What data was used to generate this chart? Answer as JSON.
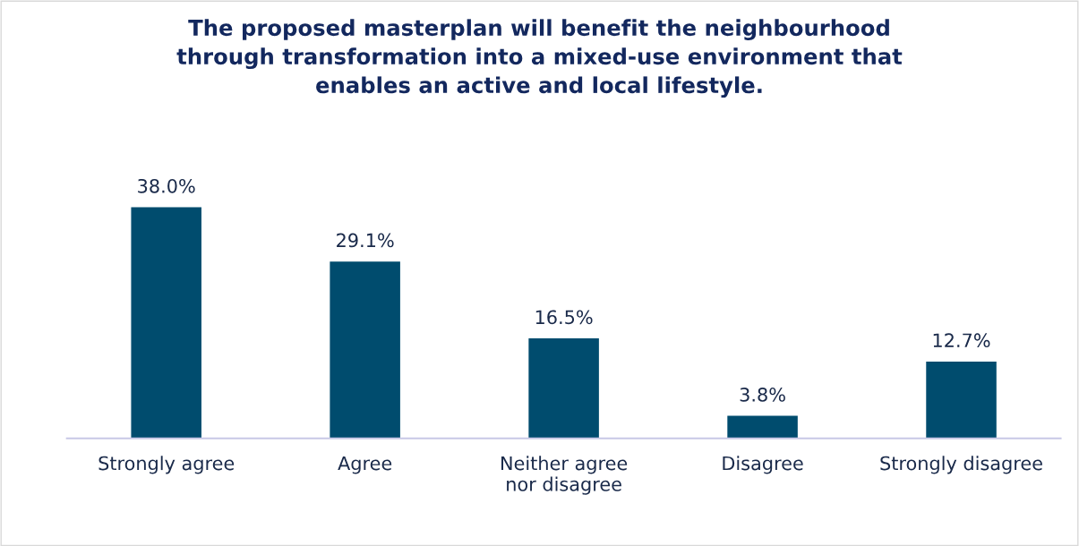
{
  "chart_data": {
    "type": "bar",
    "title": "The proposed masterplan will benefit the neighbourhood\nthrough transformation into a mixed-use environment that\nenables an active and local lifestyle.",
    "categories": [
      "Strongly agree",
      "Agree",
      "Neither agree\nnor disagree",
      "Disagree",
      "Strongly disagree"
    ],
    "values": [
      38.0,
      29.1,
      16.5,
      3.8,
      12.7
    ],
    "value_labels": [
      "38.0%",
      "29.1%",
      "16.5%",
      "3.8%",
      "12.7%"
    ],
    "color": "#004c6e",
    "grid": false,
    "legend": false
  }
}
